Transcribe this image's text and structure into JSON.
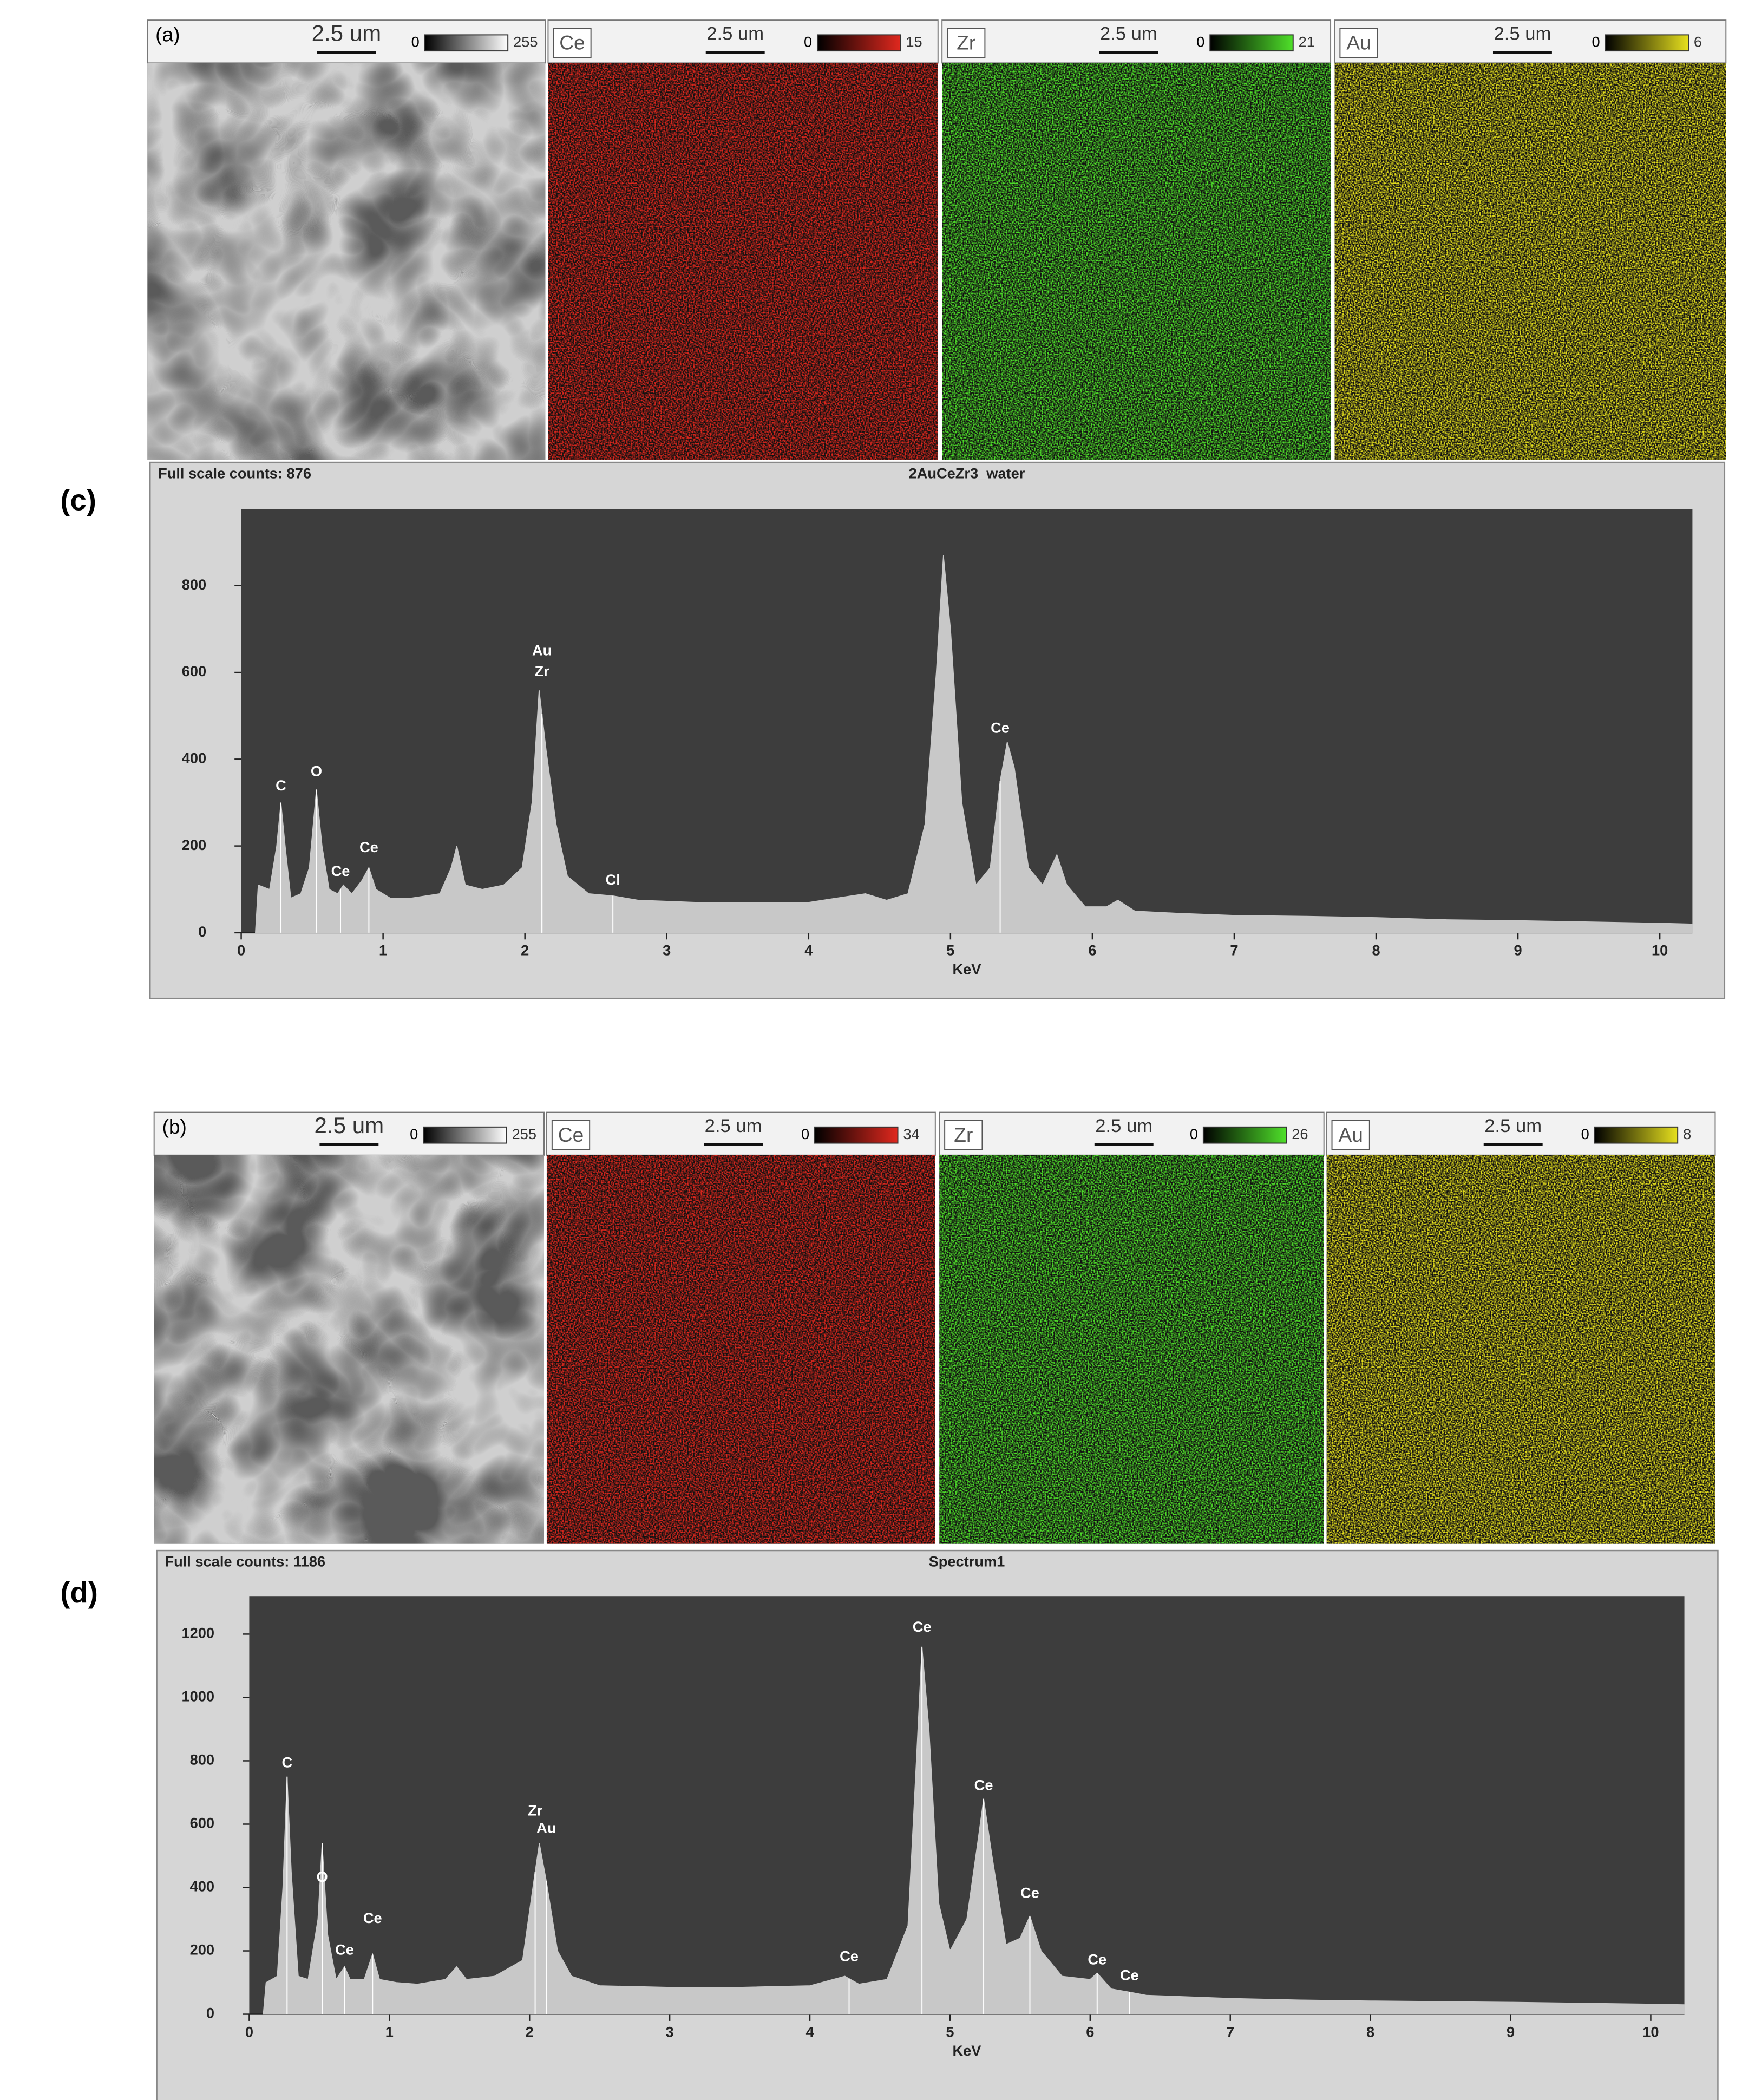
{
  "figures": [
    {
      "label": "(a)",
      "panels": [
        {
          "scale": "2.5 um",
          "range": [
            0,
            255
          ],
          "color": "#ffffff"
        },
        {
          "element": "Ce",
          "scale": "2.5 um",
          "range": [
            0,
            15
          ],
          "color": "#e0281e"
        },
        {
          "element": "Zr",
          "scale": "2.5 um",
          "range": [
            0,
            21
          ],
          "color": "#4fe02a"
        },
        {
          "element": "Au",
          "scale": "2.5 um",
          "range": [
            0,
            6
          ],
          "color": "#e6e01e"
        }
      ]
    },
    {
      "label": "(b)",
      "panels": [
        {
          "scale": "2.5 um",
          "range": [
            0,
            255
          ],
          "color": "#ffffff"
        },
        {
          "element": "Ce",
          "scale": "2.5 um",
          "range": [
            0,
            34
          ],
          "color": "#e0281e"
        },
        {
          "element": "Zr",
          "scale": "2.5 um",
          "range": [
            0,
            26
          ],
          "color": "#4fe02a"
        },
        {
          "element": "Au",
          "scale": "2.5 um",
          "range": [
            0,
            8
          ],
          "color": "#e6e01e"
        }
      ]
    }
  ],
  "chart_data": [
    {
      "type": "area",
      "panel_label": "(c)",
      "subtitle": "Full scale counts: 876",
      "title": "2AuCeZr3_water",
      "x_label": "KeV",
      "color": "#c8c8c8",
      "x": [
        0.1,
        0.12,
        0.2,
        0.25,
        0.28,
        0.31,
        0.35,
        0.42,
        0.48,
        0.53,
        0.57,
        0.62,
        0.68,
        0.72,
        0.78,
        0.85,
        0.9,
        0.95,
        1.05,
        1.2,
        1.4,
        1.48,
        1.52,
        1.58,
        1.7,
        1.85,
        1.98,
        2.05,
        2.1,
        2.15,
        2.22,
        2.3,
        2.45,
        2.62,
        2.8,
        3.2,
        3.6,
        4.0,
        4.4,
        4.55,
        4.7,
        4.82,
        4.9,
        4.95,
        5.0,
        5.08,
        5.18,
        5.28,
        5.35,
        5.4,
        5.45,
        5.55,
        5.65,
        5.75,
        5.82,
        5.95,
        6.1,
        6.18,
        6.3,
        6.6,
        7.0,
        7.5,
        8.0,
        8.5,
        9.0,
        9.5,
        10.0,
        10.23
      ],
      "values": [
        0,
        110,
        100,
        200,
        300,
        200,
        80,
        90,
        150,
        330,
        200,
        100,
        90,
        110,
        90,
        120,
        150,
        100,
        80,
        80,
        90,
        150,
        200,
        110,
        100,
        110,
        150,
        300,
        560,
        420,
        250,
        130,
        90,
        85,
        75,
        70,
        70,
        70,
        90,
        75,
        90,
        250,
        600,
        870,
        700,
        300,
        110,
        150,
        350,
        440,
        380,
        150,
        110,
        180,
        110,
        60,
        60,
        75,
        50,
        45,
        40,
        38,
        35,
        30,
        28,
        25,
        22,
        20
      ],
      "xlim": [
        0,
        10.23
      ],
      "xticks": [
        0,
        1,
        2,
        3,
        4,
        5,
        6,
        7,
        8,
        9,
        10
      ],
      "ylim": [
        0,
        976
      ],
      "yticks": [
        0,
        200,
        400,
        600,
        800
      ],
      "annotations": [
        {
          "text": "C",
          "x": 0.28,
          "y": 337
        },
        {
          "text": "O",
          "x": 0.53,
          "y": 370
        },
        {
          "text": "Ce",
          "x": 0.7,
          "y": 140
        },
        {
          "text": "Ce",
          "x": 0.9,
          "y": 195
        },
        {
          "text": "Zr",
          "x": 2.12,
          "y": 600
        },
        {
          "text": "Au",
          "x": 2.12,
          "y": 648
        },
        {
          "text": "Cl",
          "x": 2.62,
          "y": 120
        },
        {
          "text": "Ce",
          "x": 5.35,
          "y": 470
        }
      ]
    },
    {
      "type": "area",
      "panel_label": "(d)",
      "subtitle": "Full scale counts: 1186",
      "title": "Spectrum1",
      "x_label": "KeV",
      "color": "#c8c8c8",
      "x": [
        0.1,
        0.12,
        0.2,
        0.24,
        0.27,
        0.3,
        0.35,
        0.42,
        0.49,
        0.52,
        0.56,
        0.62,
        0.68,
        0.72,
        0.82,
        0.88,
        0.93,
        1.05,
        1.2,
        1.4,
        1.48,
        1.55,
        1.75,
        1.95,
        2.03,
        2.07,
        2.12,
        2.2,
        2.3,
        2.5,
        3.0,
        3.5,
        4.0,
        4.25,
        4.35,
        4.55,
        4.7,
        4.76,
        4.8,
        4.85,
        4.92,
        5.0,
        5.12,
        5.2,
        5.24,
        5.3,
        5.4,
        5.5,
        5.57,
        5.65,
        5.8,
        6.0,
        6.05,
        6.15,
        6.28,
        6.4,
        7.0,
        7.5,
        8.0,
        8.5,
        9.0,
        9.5,
        10.0,
        10.24
      ],
      "values": [
        0,
        100,
        120,
        400,
        750,
        450,
        120,
        110,
        300,
        540,
        250,
        110,
        150,
        110,
        110,
        190,
        110,
        100,
        95,
        110,
        150,
        110,
        120,
        170,
        420,
        540,
        420,
        200,
        120,
        90,
        85,
        85,
        90,
        120,
        95,
        110,
        280,
        800,
        1160,
        900,
        350,
        200,
        300,
        550,
        680,
        500,
        220,
        240,
        310,
        200,
        120,
        110,
        130,
        80,
        70,
        60,
        50,
        45,
        42,
        40,
        38,
        35,
        32,
        30
      ],
      "xlim": [
        0,
        10.24
      ],
      "xticks": [
        0,
        1,
        2,
        3,
        4,
        5,
        6,
        7,
        8,
        9,
        10
      ],
      "ylim": [
        0,
        1320
      ],
      "yticks": [
        0,
        200,
        400,
        600,
        800,
        1000,
        1200
      ],
      "annotations": [
        {
          "text": "C",
          "x": 0.27,
          "y": 792
        },
        {
          "text": "O",
          "x": 0.52,
          "y": 430
        },
        {
          "text": "Ce",
          "x": 0.68,
          "y": 200
        },
        {
          "text": "Ce",
          "x": 0.88,
          "y": 300
        },
        {
          "text": "Zr",
          "x": 2.04,
          "y": 640
        },
        {
          "text": "Au",
          "x": 2.12,
          "y": 585
        },
        {
          "text": "Ce",
          "x": 4.28,
          "y": 180
        },
        {
          "text": "Ce",
          "x": 4.8,
          "y": 1220
        },
        {
          "text": "Ce",
          "x": 5.24,
          "y": 720
        },
        {
          "text": "Ce",
          "x": 5.57,
          "y": 380
        },
        {
          "text": "Ce",
          "x": 6.05,
          "y": 170
        },
        {
          "text": "Ce",
          "x": 6.28,
          "y": 120
        }
      ]
    }
  ]
}
